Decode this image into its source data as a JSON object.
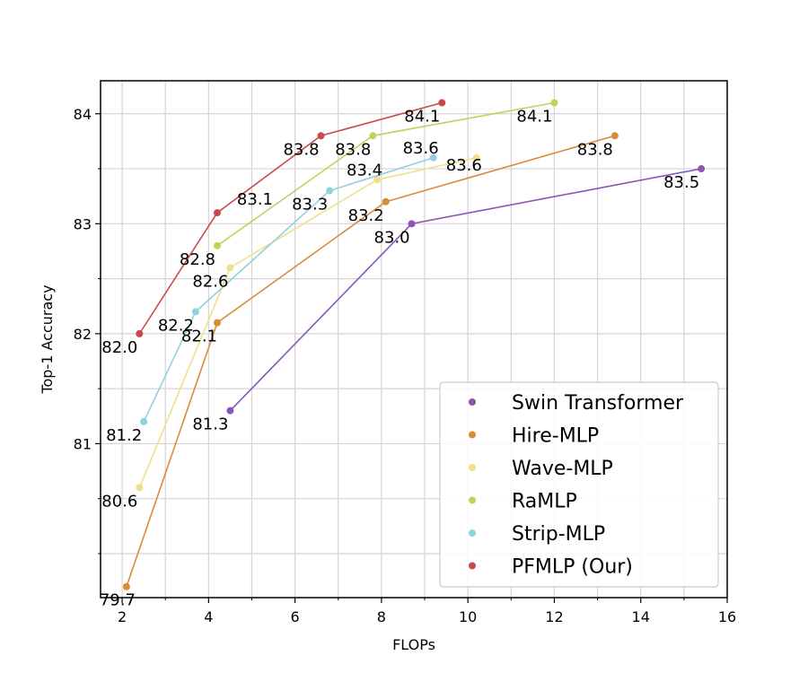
{
  "chart_data": {
    "type": "line",
    "xlabel": "FLOPs",
    "ylabel": "Top-1 Accuracy",
    "xlim": [
      1.5,
      16.0
    ],
    "ylim": [
      79.6,
      84.3
    ],
    "x_ticks": [
      2,
      4,
      6,
      8,
      10,
      12,
      14,
      16
    ],
    "y_ticks": [
      81,
      82,
      83,
      84
    ],
    "grid": true,
    "legend_position": "lower-right",
    "series": [
      {
        "name": "Swin Transformer",
        "color": "#8a55b5",
        "x": [
          4.5,
          8.7,
          15.4
        ],
        "y": [
          81.3,
          83.0,
          83.5
        ],
        "labels": [
          "81.3",
          "83.0",
          "83.5"
        ]
      },
      {
        "name": "Hire-MLP",
        "color": "#d88c3a",
        "x": [
          2.1,
          4.2,
          8.1,
          13.4
        ],
        "y": [
          79.7,
          82.1,
          83.2,
          83.8
        ],
        "labels": [
          "79.7",
          "82.1",
          "83.2",
          "83.8"
        ]
      },
      {
        "name": "Wave-MLP",
        "color": "#efe08c",
        "x": [
          2.4,
          4.5,
          7.9,
          10.2
        ],
        "y": [
          80.6,
          82.6,
          83.4,
          83.6
        ],
        "labels": [
          "80.6",
          "82.6",
          "83.4",
          "83.6"
        ]
      },
      {
        "name": "RaMLP",
        "color": "#bcd45b",
        "x": [
          4.2,
          7.8,
          12.0
        ],
        "y": [
          82.8,
          83.8,
          84.1
        ],
        "labels": [
          "82.8",
          "83.8",
          "84.1"
        ]
      },
      {
        "name": "Strip-MLP",
        "color": "#8fd1dc",
        "x": [
          2.5,
          3.7,
          6.8,
          9.2
        ],
        "y": [
          81.2,
          82.2,
          83.3,
          83.6
        ],
        "labels": [
          "81.2",
          "82.2",
          "83.3",
          "83.6"
        ]
      },
      {
        "name": "PFMLP (Our)",
        "color": "#c94a4a",
        "x": [
          2.4,
          4.2,
          6.6,
          9.4
        ],
        "y": [
          82.0,
          83.1,
          83.8,
          84.1
        ],
        "labels": [
          "82.0",
          "83.1",
          "83.8",
          "84.1"
        ]
      }
    ]
  }
}
